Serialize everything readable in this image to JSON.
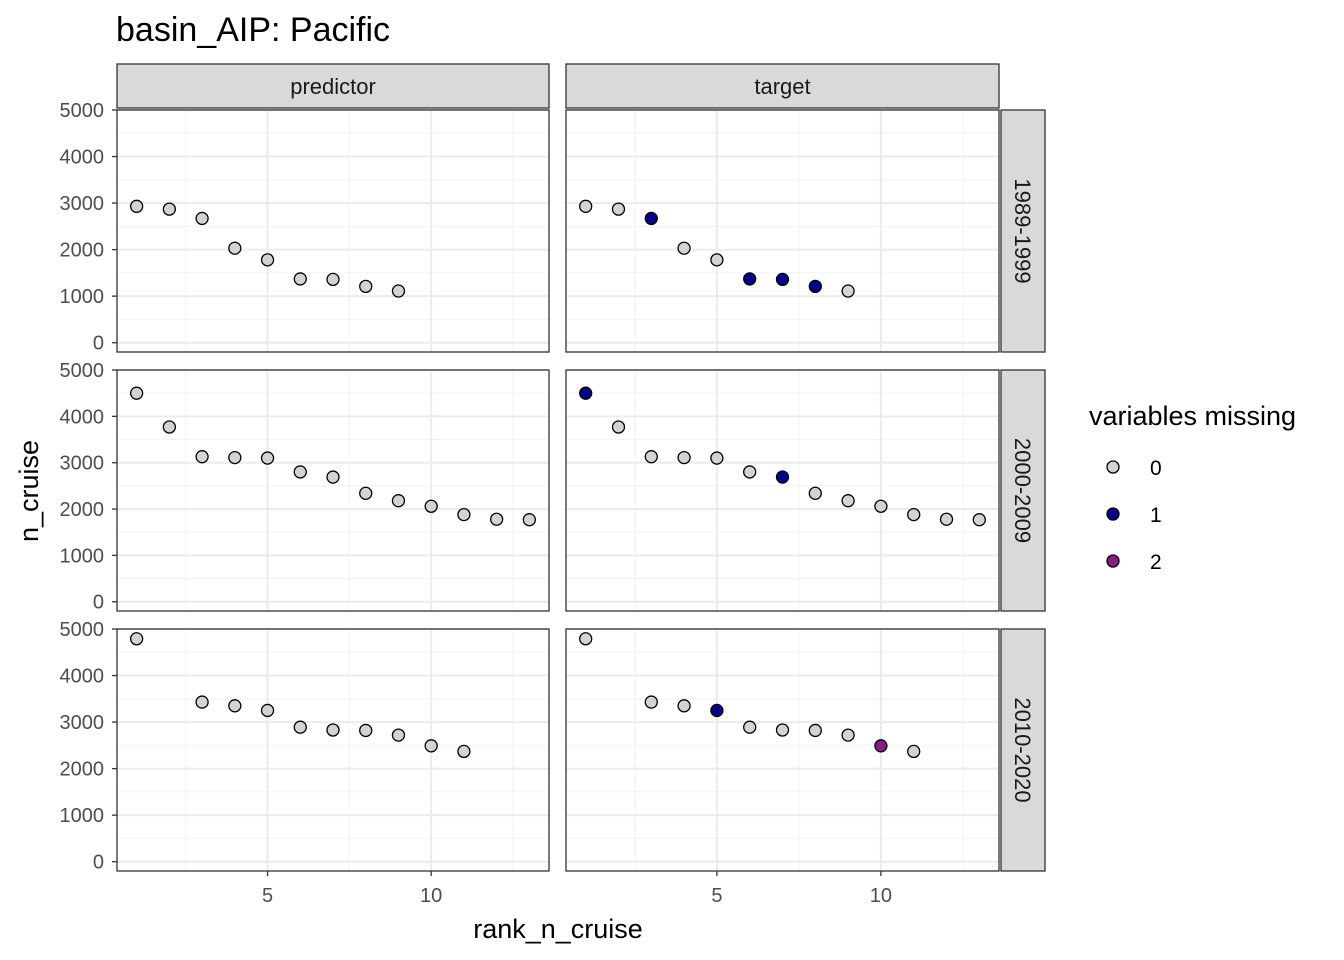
{
  "chart_data": {
    "type": "scatter",
    "title": "basin_AIP: Pacific",
    "xlabel": "rank_n_cruise",
    "ylabel": "n_cruise",
    "xlim": [
      0.4,
      13.6
    ],
    "ylim": [
      -200,
      5000
    ],
    "x_ticks": [
      5,
      10
    ],
    "y_ticks": [
      0,
      1000,
      2000,
      3000,
      4000,
      5000
    ],
    "columns": [
      "predictor",
      "target"
    ],
    "rows": [
      "1989-1999",
      "2000-2009",
      "2010-2020"
    ],
    "legend": {
      "title": "variables missing",
      "position": "right",
      "entries": [
        {
          "label": "0",
          "color": "#d3d3d3"
        },
        {
          "label": "1",
          "color": "#00008b"
        },
        {
          "label": "2",
          "color": "#8b1a8b"
        }
      ]
    },
    "panels": [
      {
        "row": "1989-1999",
        "column": "predictor",
        "points": [
          {
            "x": 1,
            "y": 2930,
            "missing": 0
          },
          {
            "x": 2,
            "y": 2870,
            "missing": 0
          },
          {
            "x": 3,
            "y": 2670,
            "missing": 0
          },
          {
            "x": 4,
            "y": 2030,
            "missing": 0
          },
          {
            "x": 5,
            "y": 1780,
            "missing": 0
          },
          {
            "x": 6,
            "y": 1370,
            "missing": 0
          },
          {
            "x": 7,
            "y": 1360,
            "missing": 0
          },
          {
            "x": 8,
            "y": 1210,
            "missing": 0
          },
          {
            "x": 9,
            "y": 1110,
            "missing": 0
          }
        ]
      },
      {
        "row": "1989-1999",
        "column": "target",
        "points": [
          {
            "x": 1,
            "y": 2930,
            "missing": 0
          },
          {
            "x": 2,
            "y": 2870,
            "missing": 0
          },
          {
            "x": 3,
            "y": 2670,
            "missing": 1
          },
          {
            "x": 4,
            "y": 2030,
            "missing": 0
          },
          {
            "x": 5,
            "y": 1780,
            "missing": 0
          },
          {
            "x": 6,
            "y": 1370,
            "missing": 1
          },
          {
            "x": 7,
            "y": 1360,
            "missing": 1
          },
          {
            "x": 8,
            "y": 1210,
            "missing": 1
          },
          {
            "x": 9,
            "y": 1110,
            "missing": 0
          }
        ]
      },
      {
        "row": "2000-2009",
        "column": "predictor",
        "points": [
          {
            "x": 1,
            "y": 4500,
            "missing": 0
          },
          {
            "x": 2,
            "y": 3770,
            "missing": 0
          },
          {
            "x": 3,
            "y": 3130,
            "missing": 0
          },
          {
            "x": 4,
            "y": 3110,
            "missing": 0
          },
          {
            "x": 5,
            "y": 3100,
            "missing": 0
          },
          {
            "x": 6,
            "y": 2800,
            "missing": 0
          },
          {
            "x": 7,
            "y": 2690,
            "missing": 0
          },
          {
            "x": 8,
            "y": 2340,
            "missing": 0
          },
          {
            "x": 9,
            "y": 2180,
            "missing": 0
          },
          {
            "x": 10,
            "y": 2060,
            "missing": 0
          },
          {
            "x": 11,
            "y": 1880,
            "missing": 0
          },
          {
            "x": 12,
            "y": 1780,
            "missing": 0
          },
          {
            "x": 13,
            "y": 1770,
            "missing": 0
          }
        ]
      },
      {
        "row": "2000-2009",
        "column": "target",
        "points": [
          {
            "x": 1,
            "y": 4500,
            "missing": 1
          },
          {
            "x": 2,
            "y": 3770,
            "missing": 0
          },
          {
            "x": 3,
            "y": 3130,
            "missing": 0
          },
          {
            "x": 4,
            "y": 3110,
            "missing": 0
          },
          {
            "x": 5,
            "y": 3100,
            "missing": 0
          },
          {
            "x": 6,
            "y": 2800,
            "missing": 0
          },
          {
            "x": 7,
            "y": 2690,
            "missing": 1
          },
          {
            "x": 8,
            "y": 2340,
            "missing": 0
          },
          {
            "x": 9,
            "y": 2180,
            "missing": 0
          },
          {
            "x": 10,
            "y": 2060,
            "missing": 0
          },
          {
            "x": 11,
            "y": 1880,
            "missing": 0
          },
          {
            "x": 12,
            "y": 1780,
            "missing": 0
          },
          {
            "x": 13,
            "y": 1770,
            "missing": 0
          }
        ]
      },
      {
        "row": "2010-2020",
        "column": "predictor",
        "points": [
          {
            "x": 1,
            "y": 4790,
            "missing": 0
          },
          {
            "x": 3,
            "y": 3430,
            "missing": 0
          },
          {
            "x": 4,
            "y": 3350,
            "missing": 0
          },
          {
            "x": 5,
            "y": 3250,
            "missing": 0
          },
          {
            "x": 6,
            "y": 2890,
            "missing": 0
          },
          {
            "x": 7,
            "y": 2830,
            "missing": 0
          },
          {
            "x": 8,
            "y": 2820,
            "missing": 0
          },
          {
            "x": 9,
            "y": 2720,
            "missing": 0
          },
          {
            "x": 10,
            "y": 2490,
            "missing": 0
          },
          {
            "x": 11,
            "y": 2370,
            "missing": 0
          }
        ]
      },
      {
        "row": "2010-2020",
        "column": "target",
        "points": [
          {
            "x": 1,
            "y": 4790,
            "missing": 0
          },
          {
            "x": 3,
            "y": 3430,
            "missing": 0
          },
          {
            "x": 4,
            "y": 3350,
            "missing": 0
          },
          {
            "x": 5,
            "y": 3250,
            "missing": 1
          },
          {
            "x": 6,
            "y": 2890,
            "missing": 0
          },
          {
            "x": 7,
            "y": 2830,
            "missing": 0
          },
          {
            "x": 8,
            "y": 2820,
            "missing": 0
          },
          {
            "x": 9,
            "y": 2720,
            "missing": 0
          },
          {
            "x": 10,
            "y": 2490,
            "missing": 2
          },
          {
            "x": 11,
            "y": 2370,
            "missing": 0
          }
        ]
      }
    ]
  }
}
